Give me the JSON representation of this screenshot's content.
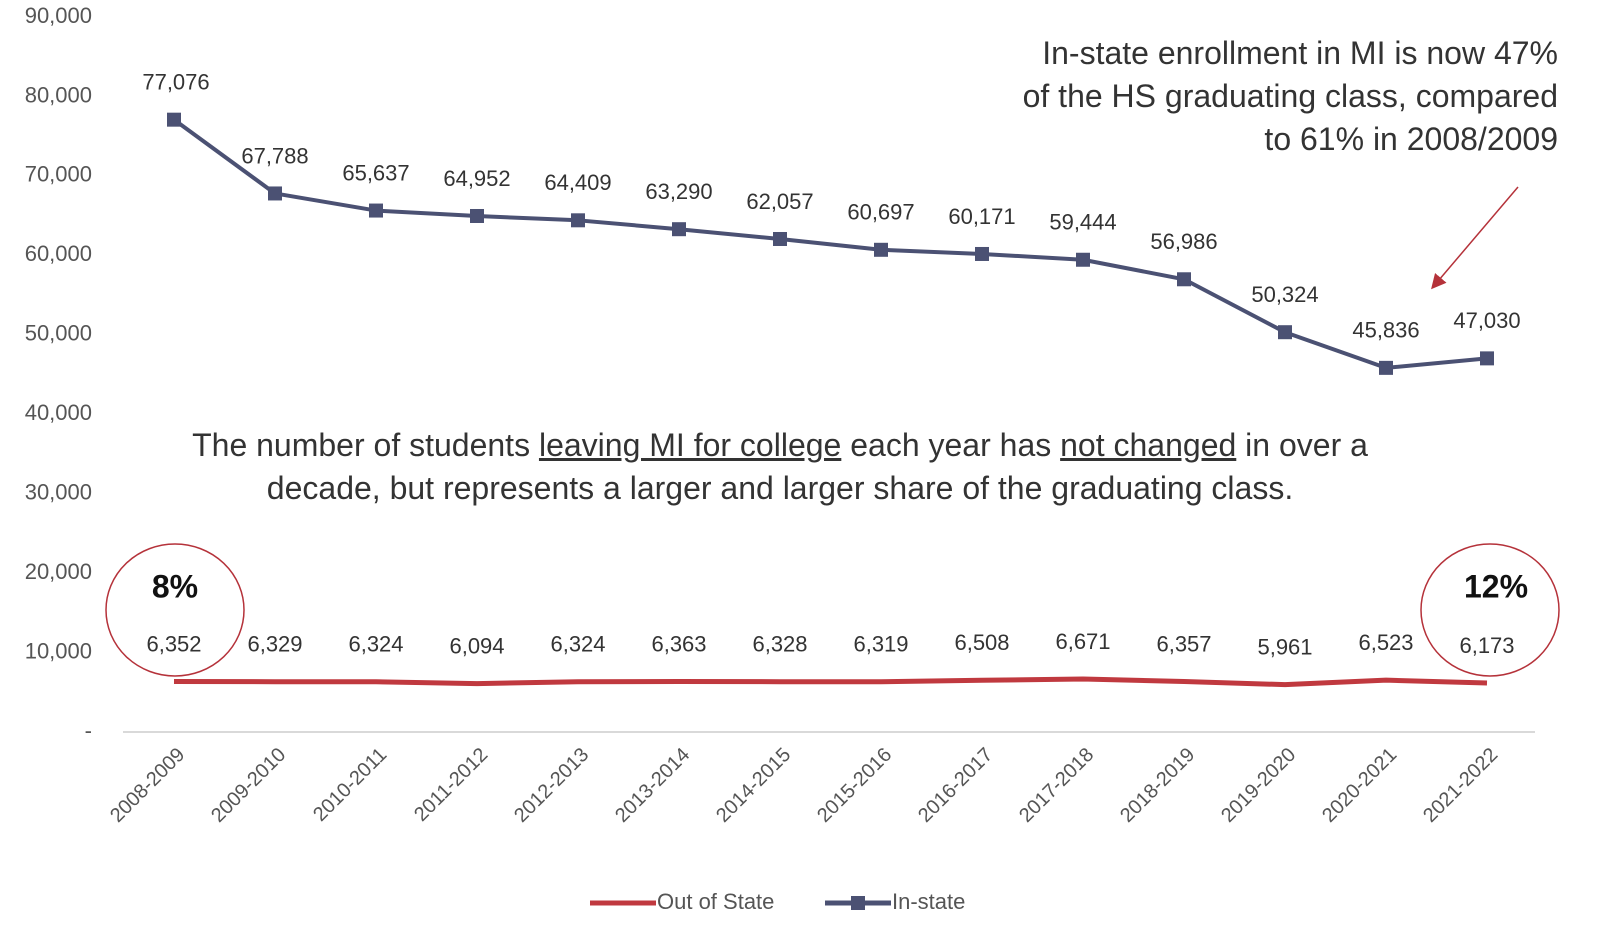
{
  "chart_data": {
    "type": "line",
    "categories": [
      "2008-2009",
      "2009-2010",
      "2010-2011",
      "2011-2012",
      "2012-2013",
      "2013-2014",
      "2014-2015",
      "2015-2016",
      "2016-2017",
      "2017-2018",
      "2018-2019",
      "2019-2020",
      "2020-2021",
      "2021-2022"
    ],
    "series": [
      {
        "name": "Out of State",
        "color": "#c0393f",
        "markers": false,
        "values": [
          6352,
          6329,
          6324,
          6094,
          6324,
          6363,
          6328,
          6319,
          6508,
          6671,
          6357,
          5961,
          6523,
          6173
        ],
        "value_labels": [
          "6,352",
          "6,329",
          "6,324",
          "6,094",
          "6,324",
          "6,363",
          "6,328",
          "6,319",
          "6,508",
          "6,671",
          "6,357",
          "5,961",
          "6,523",
          "6,173"
        ]
      },
      {
        "name": "In-state",
        "color": "#4b5173",
        "markers": true,
        "values": [
          77076,
          67788,
          65637,
          64952,
          64409,
          63290,
          62057,
          60697,
          60171,
          59444,
          56986,
          50324,
          45836,
          47030
        ],
        "value_labels": [
          "77,076",
          "67,788",
          "65,637",
          "64,952",
          "64,409",
          "63,290",
          "62,057",
          "60,697",
          "60,171",
          "59,444",
          "56,986",
          "50,324",
          "45,836",
          "47,030"
        ]
      }
    ],
    "ylim": [
      0,
      90000
    ],
    "yticks": [
      {
        "value": 0,
        "label": "-"
      },
      {
        "value": 10000,
        "label": "10,000"
      },
      {
        "value": 20000,
        "label": "20,000"
      },
      {
        "value": 30000,
        "label": "30,000"
      },
      {
        "value": 40000,
        "label": "40,000"
      },
      {
        "value": 50000,
        "label": "50,000"
      },
      {
        "value": 60000,
        "label": "60,000"
      },
      {
        "value": 70000,
        "label": "70,000"
      },
      {
        "value": 80000,
        "label": "80,000"
      },
      {
        "value": 90000,
        "label": "90,000"
      }
    ],
    "legend": "bottom",
    "annotations": {
      "top_right": "In-state enrollment in MI is now 47% of the HS graduating class, compared to 61% in 2008/2009",
      "middle": [
        "The number of students ",
        "leaving MI for college",
        " each year has ",
        "not changed",
        " in over a decade, but represents a larger and larger share of the graduating class."
      ],
      "circle_left": "8%",
      "circle_right": "12%"
    }
  }
}
